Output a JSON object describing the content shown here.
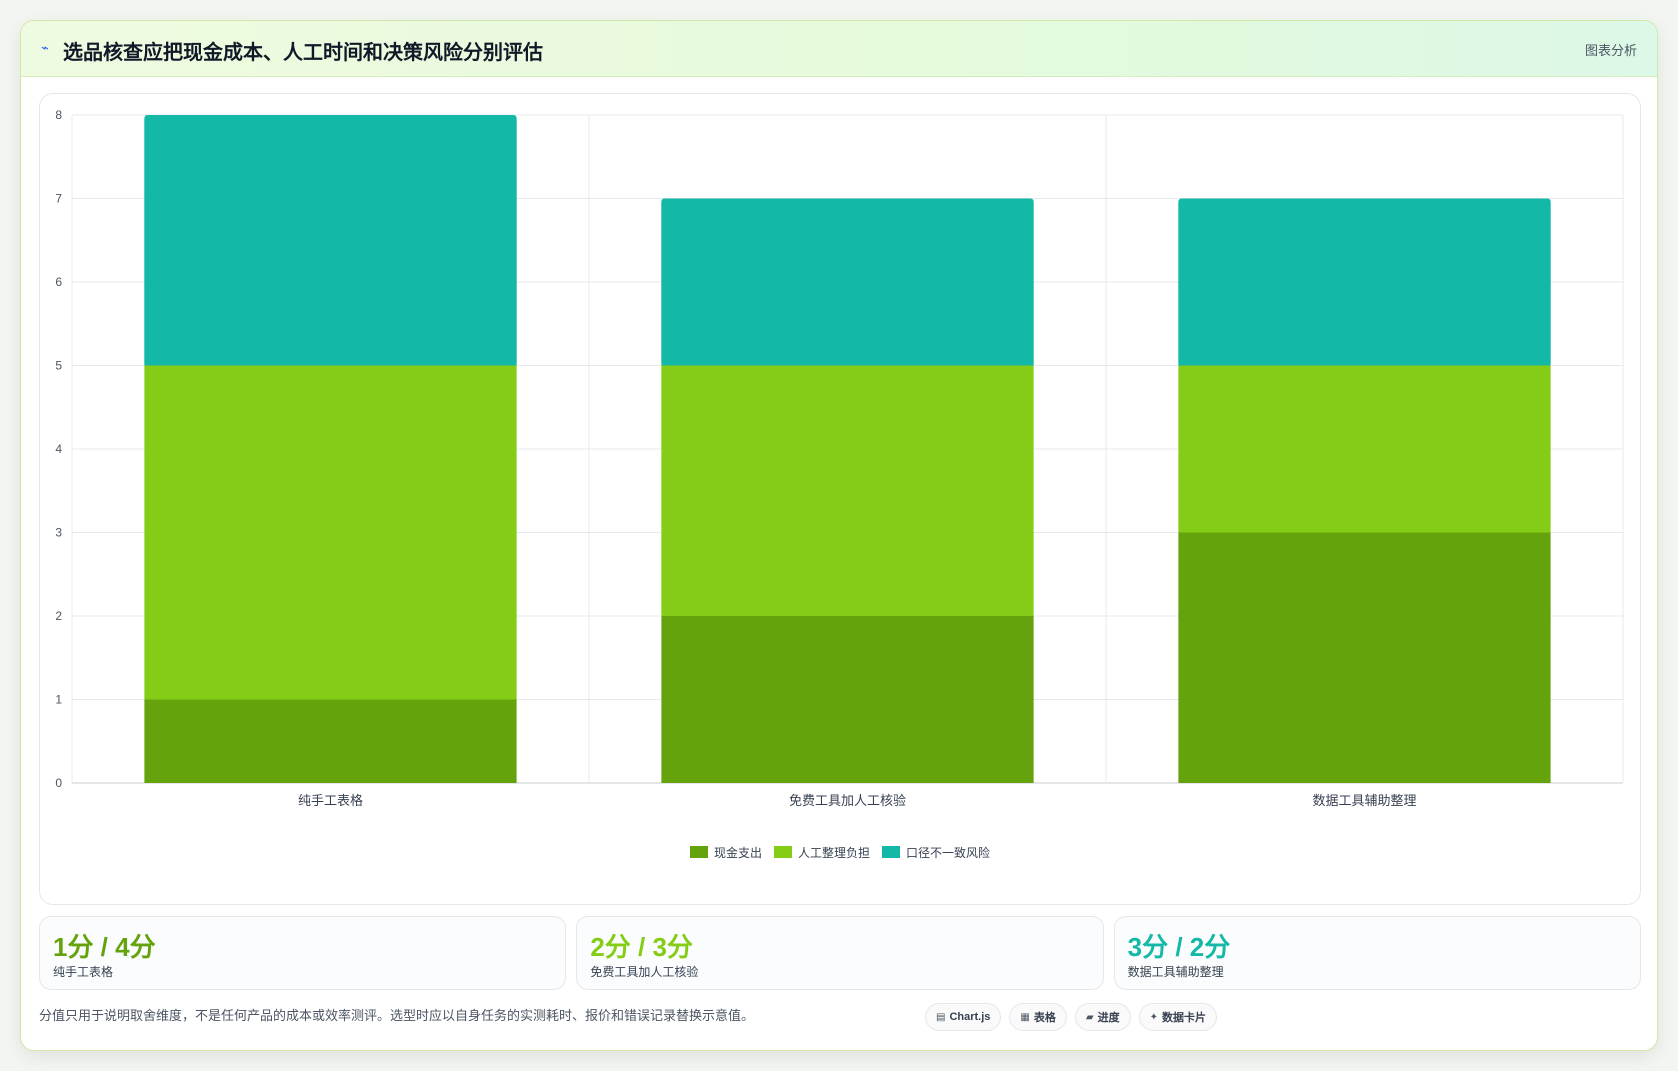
{
  "header": {
    "icon": "chart-line-icon",
    "title": "选品核查应把现金成本、人工时间和决策风险分别评估",
    "tag": "图表分析"
  },
  "chart_data": {
    "type": "bar",
    "stacked": true,
    "categories": [
      "纯手工表格",
      "免费工具加人工核验",
      "数据工具辅助整理"
    ],
    "series": [
      {
        "name": "现金支出",
        "values": [
          1,
          2,
          3
        ],
        "color": "#65a30d"
      },
      {
        "name": "人工整理负担",
        "values": [
          4,
          3,
          2
        ],
        "color": "#84cc16"
      },
      {
        "name": "口径不一致风险",
        "values": [
          3,
          2,
          2
        ],
        "color": "#14b8a6"
      }
    ],
    "ylim": [
      0,
      8
    ],
    "yticks": [
      "0",
      "1",
      "2",
      "3",
      "4",
      "5",
      "6",
      "7",
      "8"
    ],
    "grid": true,
    "legend": "bottom"
  },
  "kpis": [
    {
      "value": "1分 / 4分",
      "label": "纯手工表格",
      "color": "#65a30d"
    },
    {
      "value": "2分 / 3分",
      "label": "免费工具加人工核验",
      "color": "#84cc16"
    },
    {
      "value": "3分 / 2分",
      "label": "数据工具辅助整理",
      "color": "#14b8a6"
    }
  ],
  "footer": {
    "note": "分值只用于说明取舍维度，不是任何产品的成本或效率测评。选型时应以自身任务的实测耗时、报价和错误记录替换示意值。"
  },
  "chips": [
    {
      "icon": "chart-icon",
      "glyph": "▤",
      "label": "Chart.js"
    },
    {
      "icon": "table-icon",
      "glyph": "▦",
      "label": "表格"
    },
    {
      "icon": "progress-icon",
      "glyph": "▰",
      "label": "进度"
    },
    {
      "icon": "data-card-icon",
      "glyph": "✦",
      "label": "数据卡片"
    }
  ]
}
